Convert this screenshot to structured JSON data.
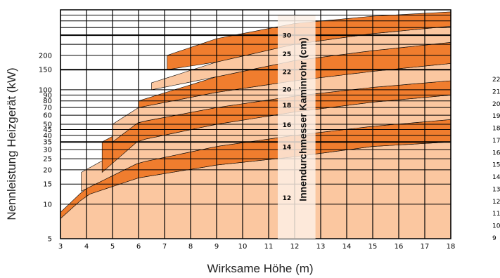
{
  "chart_data": {
    "type": "area",
    "xlabel": "Wirksame Höhe (m)",
    "ylabel": "Nennleistung Heizgerät (kW)",
    "overlay_label": "Innendurchmesser Kaminrohr (cm)",
    "xlim": [
      3,
      18
    ],
    "x_ticks": [
      "3",
      "4",
      "5",
      "6",
      "7",
      "8",
      "9",
      "10",
      "11",
      "12",
      "13",
      "14",
      "15",
      "16",
      "17",
      "18"
    ],
    "y_scale": "log",
    "y_ticks": [
      "5",
      "10",
      "15",
      "20",
      "25",
      "30",
      "35",
      "40",
      "45",
      "50",
      "60",
      "70",
      "80",
      "90",
      "100",
      "150",
      "200"
    ],
    "right_clipped_labels": [
      "22",
      "21",
      "20",
      "19",
      "18",
      "17",
      "16",
      "15",
      "14",
      "13",
      "12",
      "11",
      "10",
      "9"
    ],
    "grid": true,
    "colors": {
      "dark_orange": "#f07d2e",
      "light_orange": "#fbc7a0",
      "overlay": "#fdf0e6",
      "grid": "#000000"
    },
    "bands": [
      {
        "diameter_cm": "12",
        "shade": "light",
        "start_x": 3.0,
        "lower": [
          [
            3,
            5
          ],
          [
            6,
            5
          ],
          [
            9,
            5
          ],
          [
            12,
            5
          ],
          [
            15,
            5
          ],
          [
            18,
            5
          ]
        ],
        "upper": [
          [
            3,
            7.5
          ],
          [
            4,
            12
          ],
          [
            6,
            17
          ],
          [
            9,
            22
          ],
          [
            12,
            26
          ],
          [
            15,
            32
          ],
          [
            18,
            35
          ]
        ]
      },
      {
        "diameter_cm": "14",
        "shade": "dark",
        "start_x": 3.0,
        "lower": [
          [
            3,
            7.5
          ],
          [
            4,
            12
          ],
          [
            6,
            17
          ],
          [
            9,
            22
          ],
          [
            12,
            26
          ],
          [
            15,
            32
          ],
          [
            18,
            35
          ]
        ],
        "upper": [
          [
            3,
            8.5
          ],
          [
            4,
            14
          ],
          [
            6,
            23
          ],
          [
            9,
            32
          ],
          [
            12,
            40
          ],
          [
            15,
            48
          ],
          [
            18,
            55
          ]
        ]
      },
      {
        "diameter_cm": "16",
        "shade": "light",
        "start_x": 3.8,
        "lower": [
          [
            3.8,
            13
          ],
          [
            6,
            23
          ],
          [
            9,
            32
          ],
          [
            12,
            40
          ],
          [
            15,
            48
          ],
          [
            18,
            55
          ]
        ],
        "upper": [
          [
            3.8,
            19
          ],
          [
            6,
            36
          ],
          [
            9,
            50
          ],
          [
            12,
            64
          ],
          [
            15,
            78
          ],
          [
            18,
            90
          ]
        ]
      },
      {
        "diameter_cm": "18",
        "shade": "dark",
        "start_x": 4.6,
        "lower": [
          [
            4.6,
            19
          ],
          [
            6,
            36
          ],
          [
            9,
            50
          ],
          [
            12,
            64
          ],
          [
            15,
            78
          ],
          [
            18,
            90
          ]
        ],
        "upper": [
          [
            4.6,
            35
          ],
          [
            6,
            52
          ],
          [
            9,
            70
          ],
          [
            12,
            88
          ],
          [
            15,
            105
          ],
          [
            18,
            120
          ]
        ]
      },
      {
        "diameter_cm": "20",
        "shade": "light",
        "start_x": 5.0,
        "lower": [
          [
            5,
            35
          ],
          [
            6,
            52
          ],
          [
            9,
            70
          ],
          [
            12,
            88
          ],
          [
            15,
            105
          ],
          [
            18,
            120
          ]
        ],
        "upper": [
          [
            5,
            50
          ],
          [
            6,
            70
          ],
          [
            9,
            95
          ],
          [
            12,
            120
          ],
          [
            15,
            145
          ],
          [
            18,
            170
          ]
        ]
      },
      {
        "diameter_cm": "22",
        "shade": "dark",
        "start_x": 6.0,
        "lower": [
          [
            6,
            70
          ],
          [
            9,
            95
          ],
          [
            12,
            120
          ],
          [
            15,
            145
          ],
          [
            18,
            170
          ]
        ],
        "upper": [
          [
            6,
            80
          ],
          [
            9,
            130
          ],
          [
            12,
            180
          ],
          [
            15,
            220
          ],
          [
            18,
            260
          ]
        ]
      },
      {
        "diameter_cm": "25",
        "shade": "light",
        "start_x": 6.5,
        "lower": [
          [
            6.5,
            100
          ],
          [
            9,
            130
          ],
          [
            12,
            180
          ],
          [
            15,
            220
          ],
          [
            18,
            260
          ]
        ],
        "upper": [
          [
            6.5,
            115
          ],
          [
            9,
            175
          ],
          [
            12,
            250
          ],
          [
            15,
            310
          ],
          [
            18,
            360
          ]
        ]
      },
      {
        "diameter_cm": "30",
        "shade": "dark",
        "start_x": 7.1,
        "lower": [
          [
            7.1,
            150
          ],
          [
            9,
            175
          ],
          [
            12,
            250
          ],
          [
            15,
            310
          ],
          [
            18,
            360
          ]
        ],
        "upper": [
          [
            7.1,
            200
          ],
          [
            9,
            280
          ],
          [
            12,
            380
          ],
          [
            15,
            440
          ],
          [
            18,
            480
          ]
        ]
      }
    ]
  }
}
